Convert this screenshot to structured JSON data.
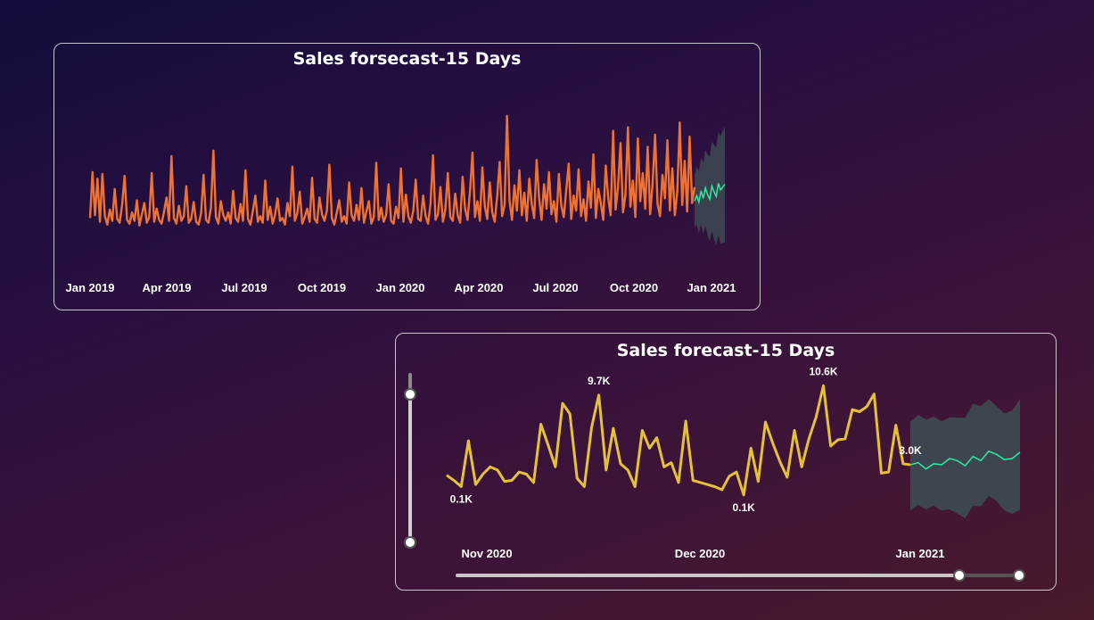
{
  "colors": {
    "historical_top": "#ee7333",
    "historical_bottom": "#e3c23a",
    "forecast": "#2ee9a0",
    "confidence_band": "#3d4a52"
  },
  "chart_data": [
    {
      "type": "line",
      "title": "Sales forsecast-15 Days",
      "x_tick_labels": [
        "Jan 2019",
        "Apr 2019",
        "Jul 2019",
        "Oct 2019",
        "Jan 2020",
        "Apr 2020",
        "Jul 2020",
        "Oct 2020",
        "Jan 2021"
      ],
      "series": [
        {
          "role": "actual",
          "values": [
            1.2,
            6.1,
            1.5,
            5.4,
            0.8,
            5.9,
            1.4,
            0.5,
            2.1,
            0.9,
            4.3,
            1.1,
            0.7,
            2.6,
            5.7,
            1.0,
            0.6,
            1.8,
            0.9,
            3.1,
            0.4,
            1.6,
            2.8,
            0.7,
            1.3,
            6.0,
            0.8,
            2.2,
            1.0,
            0.6,
            1.9,
            3.4,
            0.9,
            7.8,
            1.2,
            0.6,
            2.5,
            0.9,
            1.4,
            4.6,
            0.7,
            1.1,
            2.9,
            0.8,
            0.5,
            1.7,
            5.8,
            1.0,
            0.7,
            2.3,
            8.4,
            1.3,
            0.6,
            3.0,
            1.5,
            0.9,
            1.8,
            0.6,
            4.1,
            1.2,
            0.8,
            2.7,
            0.9,
            6.3,
            1.1,
            0.5,
            2.0,
            3.6,
            0.8,
            1.4,
            0.7,
            5.2,
            1.0,
            2.4,
            0.6,
            1.6,
            3.3,
            0.9,
            1.2,
            0.5,
            2.8,
            1.4,
            6.7,
            0.9,
            1.7,
            4.0,
            0.6,
            1.3,
            2.2,
            0.8,
            5.5,
            1.1,
            0.7,
            3.4,
            1.6,
            0.9,
            2.0,
            6.9,
            1.2,
            0.5,
            1.8,
            3.1,
            0.8,
            1.4,
            0.6,
            5.0,
            1.5,
            0.9,
            2.6,
            1.0,
            4.4,
            0.7,
            1.9,
            3.0,
            0.6,
            1.3,
            7.1,
            1.0,
            2.3,
            0.8,
            1.5,
            4.8,
            0.9,
            0.6,
            2.4,
            1.2,
            6.5,
            0.8,
            3.7,
            1.4,
            0.7,
            2.0,
            5.3,
            1.1,
            0.9,
            3.6,
            1.4,
            0.6,
            2.8,
            7.9,
            1.0,
            1.6,
            4.5,
            0.8,
            2.1,
            6.0,
            1.3,
            0.9,
            3.8,
            1.5,
            0.7,
            5.6,
            2.2,
            1.0,
            4.1,
            8.2,
            1.3,
            3.0,
            0.9,
            6.6,
            2.4,
            1.1,
            5.0,
            1.8,
            0.8,
            3.5,
            7.2,
            1.4,
            2.6,
            12.1,
            3.1,
            1.0,
            4.7,
            2.0,
            6.3,
            1.5,
            3.9,
            0.9,
            5.4,
            2.7,
            1.2,
            7.4,
            3.3,
            1.0,
            4.8,
            2.2,
            6.1,
            1.6,
            3.0,
            0.8,
            5.9,
            2.5,
            1.3,
            4.2,
            7.0,
            1.1,
            3.6,
            2.0,
            6.4,
            1.4,
            3.2,
            0.9,
            5.1,
            2.3,
            8.0,
            1.2,
            4.3,
            2.8,
            1.0,
            6.8,
            3.4,
            1.5,
            10.5,
            2.1,
            4.6,
            9.2,
            1.8,
            3.7,
            10.9,
            2.4,
            5.2,
            1.3,
            9.7,
            3.0,
            6.0,
            2.2,
            8.8,
            1.6,
            4.9,
            10.1,
            2.7,
            1.4,
            5.8,
            3.3,
            9.5,
            2.0,
            6.5,
            1.5,
            4.0,
            11.4,
            2.6,
            7.3,
            1.9,
            9.9,
            2.8,
            4.5
          ],
          "note": "daily sales, values approximate (thousands)"
        },
        {
          "role": "forecast",
          "values": [
            3.0,
            3.6,
            2.9,
            4.1,
            3.3,
            4.4,
            3.7,
            3.2,
            4.6,
            4.0,
            3.5,
            4.9,
            4.2,
            4.5,
            4.8
          ]
        }
      ]
    },
    {
      "type": "line",
      "title": "Sales forecast-15 Days",
      "x_tick_labels": [
        "Nov 2020",
        "Dec 2020",
        "Jan 2021"
      ],
      "data_labels": [
        "9.7K",
        "10.6K",
        "0.1K",
        "0.1K",
        "3.0K"
      ],
      "series": [
        {
          "role": "actual",
          "values": [
            2.0,
            1.5,
            0.9,
            5.3,
            1.1,
            2.1,
            2.8,
            2.5,
            1.4,
            1.5,
            2.3,
            2.1,
            1.3,
            6.9,
            4.9,
            2.8,
            8.9,
            7.9,
            1.7,
            0.9,
            6.6,
            9.7,
            2.5,
            6.5,
            3.1,
            2.5,
            0.9,
            6.3,
            4.6,
            5.6,
            2.8,
            3.2,
            1.3,
            7.2,
            1.5,
            1.3,
            1.1,
            0.9,
            0.6,
            1.9,
            2.3,
            0.1,
            4.6,
            1.4,
            7.1,
            5.1,
            3.3,
            1.8,
            6.3,
            2.8,
            5.5,
            7.6,
            10.6,
            4.8,
            5.4,
            5.5,
            8.3,
            8.1,
            8.6,
            9.8,
            2.2,
            2.3,
            6.8,
            3.1,
            3.0
          ]
        },
        {
          "role": "forecast",
          "values": [
            3.0,
            3.2,
            2.6,
            3.1,
            3.0,
            3.6,
            3.4,
            2.9,
            3.8,
            3.4,
            4.3,
            4.0,
            3.5,
            3.6,
            4.2
          ]
        }
      ],
      "ylim": [
        0,
        12
      ]
    }
  ]
}
